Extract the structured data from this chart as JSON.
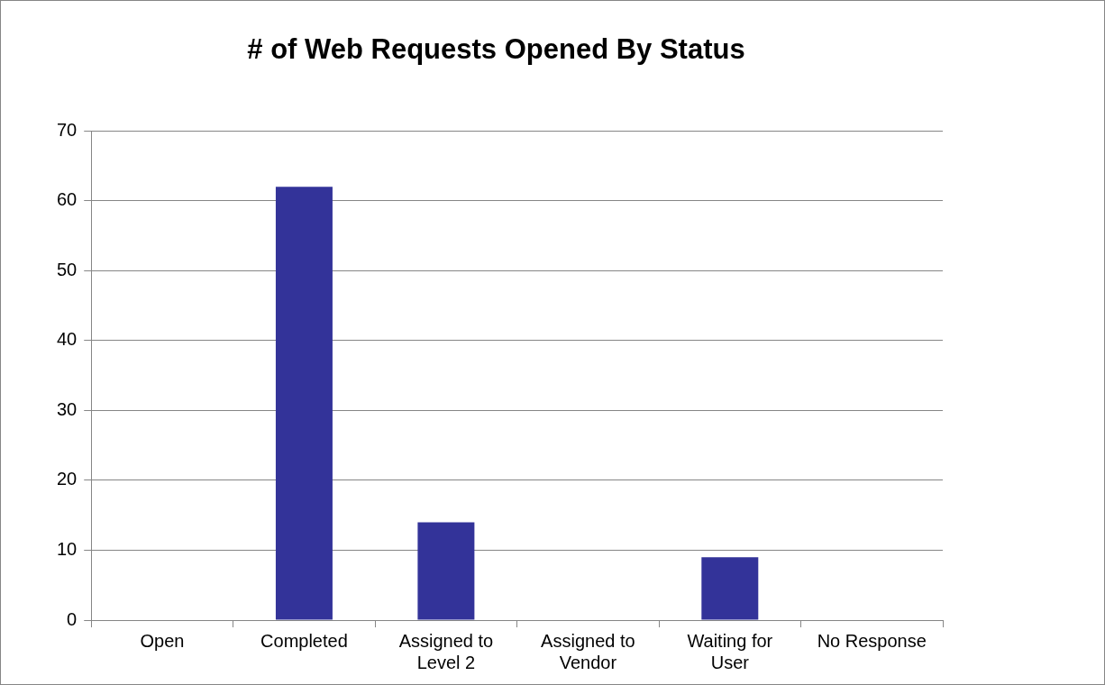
{
  "chart_data": {
    "type": "bar",
    "title": "# of Web Requests Opened By Status",
    "categories": [
      "Open",
      "Completed",
      "Assigned to Level 2",
      "Assigned to Vendor",
      "Waiting for User",
      "No Response"
    ],
    "values": [
      0,
      62,
      14,
      0,
      9,
      0
    ],
    "color": "#333399",
    "ylim": [
      0,
      70
    ],
    "yticks": [
      0,
      10,
      20,
      30,
      40,
      50,
      60,
      70
    ],
    "grid": "y",
    "legend": false
  }
}
